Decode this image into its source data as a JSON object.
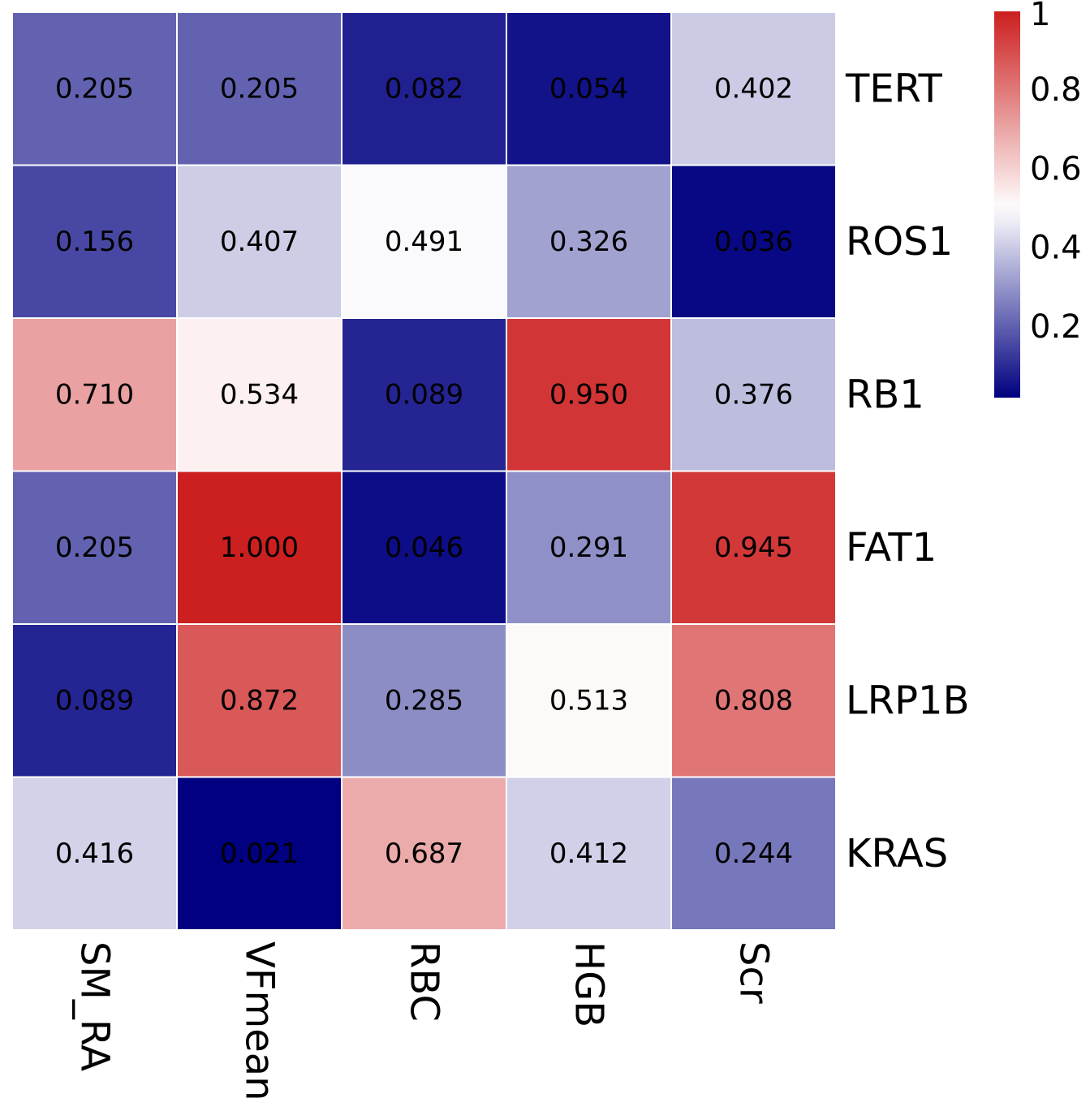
{
  "chart_data": {
    "type": "heatmap",
    "title": "",
    "columns": [
      "SM_RA",
      "VFmean",
      "RBC",
      "HGB",
      "Scr"
    ],
    "rows": [
      "TERT",
      "ROS1",
      "RB1",
      "FAT1",
      "LRP1B",
      "KRAS"
    ],
    "values": [
      [
        0.205,
        0.205,
        0.082,
        0.054,
        0.402
      ],
      [
        0.156,
        0.407,
        0.491,
        0.326,
        0.036
      ],
      [
        0.71,
        0.534,
        0.089,
        0.95,
        0.376
      ],
      [
        0.205,
        1.0,
        0.046,
        0.291,
        0.945
      ],
      [
        0.089,
        0.872,
        0.285,
        0.513,
        0.808
      ],
      [
        0.416,
        0.021,
        0.687,
        0.412,
        0.244
      ]
    ],
    "labels": [
      [
        "0.205",
        "0.205",
        "0.082",
        "0.054",
        "0.402"
      ],
      [
        "0.156",
        "0.407",
        "0.491",
        "0.326",
        "0.036"
      ],
      [
        "0.710",
        "0.534",
        "0.089",
        "0.950",
        "0.376"
      ],
      [
        "0.205",
        "1.000",
        "0.046",
        "0.291",
        "0.945"
      ],
      [
        "0.089",
        "0.872",
        "0.285",
        "0.513",
        "0.808"
      ],
      [
        "0.416",
        "0.021",
        "0.687",
        "0.412",
        "0.244"
      ]
    ],
    "colorscale": {
      "low": "#000080",
      "mid": "#ffffff",
      "high": "#cc1f1f",
      "min": 0.021,
      "mid_value": 0.5,
      "max": 1.0
    },
    "colorbar": {
      "ticks": [
        0.2,
        0.4,
        0.6,
        0.8,
        1.0
      ],
      "tick_labels": [
        "0.2",
        "0.4",
        "0.6",
        "0.8",
        "1"
      ],
      "placement": "right"
    }
  }
}
